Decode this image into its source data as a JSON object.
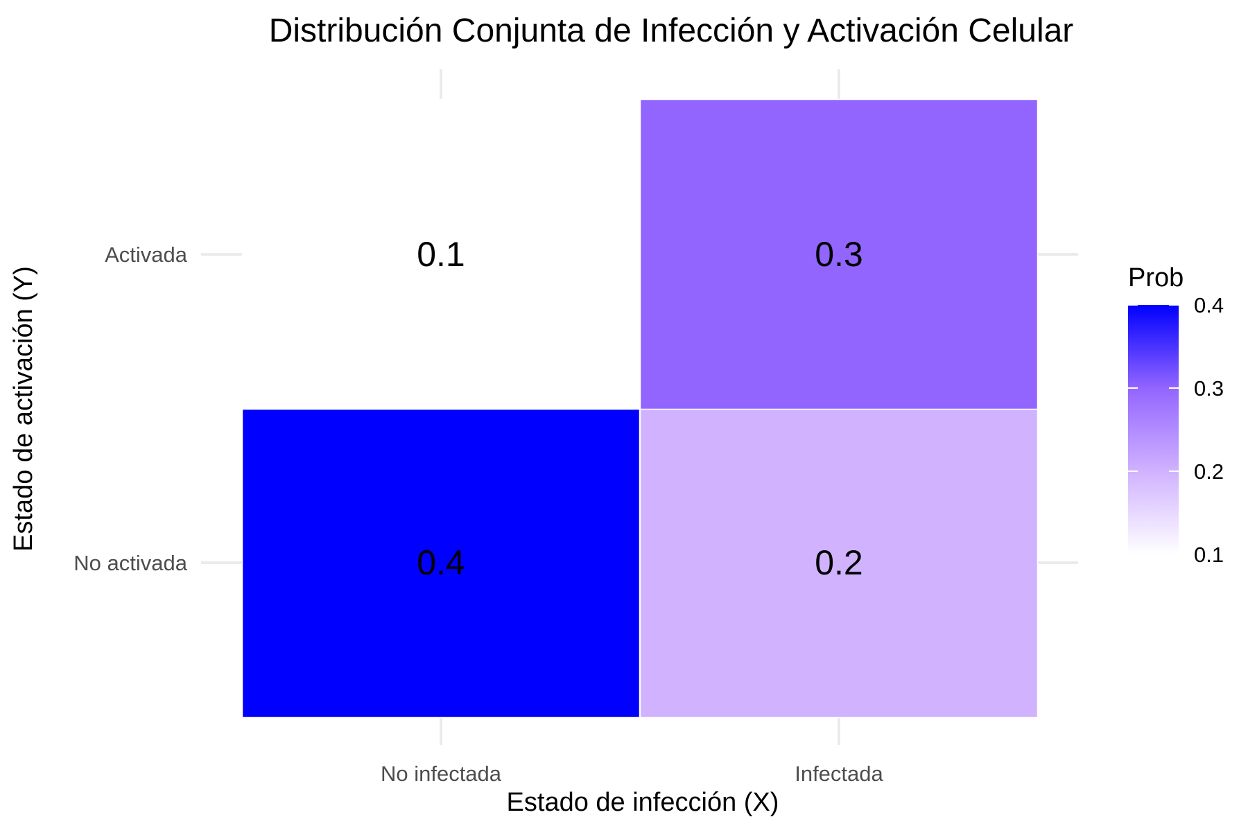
{
  "chart_data": {
    "type": "heatmap",
    "title": "Distribución Conjunta de Infección y Activación Celular",
    "xlabel": "Estado de infección (X)",
    "ylabel": "Estado de activación (Y)",
    "x_categories": [
      "No infectada",
      "Infectada"
    ],
    "y_categories": [
      "No activada",
      "Activada"
    ],
    "cells": [
      {
        "x": "No infectada",
        "y": "No activada",
        "value": 0.4,
        "label": "0.4"
      },
      {
        "x": "No infectada",
        "y": "Activada",
        "value": 0.1,
        "label": "0.1"
      },
      {
        "x": "Infectada",
        "y": "No activada",
        "value": 0.2,
        "label": "0.2"
      },
      {
        "x": "Infectada",
        "y": "Activada",
        "value": 0.3,
        "label": "0.3"
      }
    ],
    "legend": {
      "title": "Prob",
      "position": "right",
      "ticks": [
        0.1,
        0.2,
        0.3,
        0.4
      ],
      "tick_labels": [
        "0.1",
        "0.2",
        "0.3",
        "0.4"
      ],
      "low_color": "#ffffff",
      "high_color": "#0000ff",
      "range": [
        0.1,
        0.4
      ]
    },
    "grid": true,
    "grid_color": "#ebebeb",
    "tile_border_color": "#ffffff"
  }
}
